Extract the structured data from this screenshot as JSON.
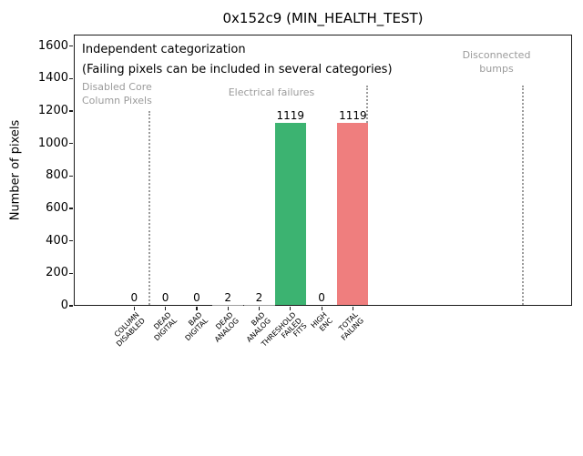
{
  "title": "0x152c9 (MIN_HEALTH_TEST)",
  "annotations": {
    "note_line1": "Independent categorization",
    "note_line2": "(Failing pixels can be included in several categories)",
    "region_disabled": "Disabled Core\nColumn Pixels",
    "region_electrical": "Electrical failures",
    "region_disconnected": "Disconnected\nbumps"
  },
  "colors": {
    "bar_green": "#3cb371",
    "bar_red": "#ef7e7e",
    "muted_text": "#9b9b9b",
    "separator_line": "#9b9b9b",
    "axis": "#1a1a1a"
  },
  "chart_data": {
    "type": "bar",
    "title": "0x152c9 (MIN_HEALTH_TEST)",
    "xlabel": "",
    "ylabel": "Number of pixels",
    "categories": [
      "COLUMN\nDISABLED",
      "DEAD\nDIGITAL",
      "BAD\nDIGITAL",
      "DEAD\nANALOG",
      "BAD\nANALOG",
      "THRESHOLD\nFAILED\nFITS",
      "HIGH\nENC",
      "TOTAL\nFAILING"
    ],
    "values": [
      0,
      0,
      0,
      2,
      2,
      1119,
      0,
      1119
    ],
    "bar_value_labels": [
      "0",
      "0",
      "0",
      "2",
      "2",
      "1119",
      "0",
      "1119"
    ],
    "bar_colors": [
      "#9e9e9e",
      "#9e9e9e",
      "#9e9e9e",
      "#9e9e9e",
      "#9e9e9e",
      "#3cb371",
      "#9e9e9e",
      "#ef7e7e"
    ],
    "ylim": [
      0,
      1671
    ],
    "y_ticks": [
      0,
      200,
      400,
      600,
      800,
      1000,
      1200,
      1400,
      1600
    ],
    "grid": false,
    "legend": "none",
    "separators": [
      {
        "x": 0.5,
        "y_top": 1200
      },
      {
        "x": 7.45,
        "y_top": 1357
      },
      {
        "x": 12.44,
        "y_top": 1357
      }
    ]
  }
}
